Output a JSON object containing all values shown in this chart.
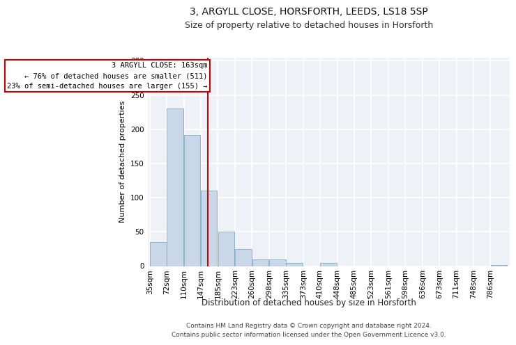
{
  "title1": "3, ARGYLL CLOSE, HORSFORTH, LEEDS, LS18 5SP",
  "title2": "Size of property relative to detached houses in Horsforth",
  "xlabel": "Distribution of detached houses by size in Horsforth",
  "ylabel": "Number of detached properties",
  "footer1": "Contains HM Land Registry data © Crown copyright and database right 2024.",
  "footer2": "Contains public sector information licensed under the Open Government Licence v3.0.",
  "bins": [
    35,
    72,
    110,
    147,
    185,
    223,
    260,
    298,
    335,
    373,
    410,
    448,
    485,
    523,
    561,
    598,
    636,
    673,
    711,
    748,
    786
  ],
  "bar_heights": [
    35,
    230,
    192,
    110,
    50,
    25,
    10,
    10,
    5,
    0,
    5,
    0,
    0,
    0,
    0,
    0,
    0,
    0,
    0,
    0,
    2
  ],
  "bar_color": "#c8d8e8",
  "bar_edgecolor": "#7aaac8",
  "property_size": 163,
  "vline_color": "#cc0000",
  "annotation_line1": "3 ARGYLL CLOSE: 163sqm",
  "annotation_line2": "← 76% of detached houses are smaller (511)",
  "annotation_line3": "23% of semi-detached houses are larger (155) →",
  "annotation_boxcolor": "white",
  "annotation_edgecolor": "#cc0000",
  "ylim": [
    0,
    305
  ],
  "yticks": [
    0,
    50,
    100,
    150,
    200,
    250,
    300
  ],
  "background_color": "#eef2f7",
  "grid_color": "white",
  "title1_fontsize": 10,
  "title2_fontsize": 9,
  "xlabel_fontsize": 8.5,
  "ylabel_fontsize": 8,
  "tick_fontsize": 7.5,
  "footer_fontsize": 6.5,
  "annot_fontsize": 7.5
}
